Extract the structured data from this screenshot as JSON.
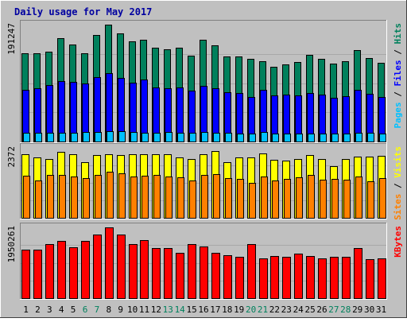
{
  "chart_data": {
    "type": "bar",
    "title": "Daily usage for May 2017",
    "colors": {
      "background": "#C0C0C0",
      "frame_light": "#FFFFFF",
      "frame_dark": "#808080",
      "title": "#0000A0",
      "hits": "#00805C",
      "files": "#0000FF",
      "pages": "#00C0FF",
      "visits": "#FFFF00",
      "sites": "#FF8000",
      "kbytes": "#FF0000",
      "weekend_label": "#00805C",
      "weekday_label": "#000000"
    },
    "categories": [
      "1",
      "2",
      "3",
      "4",
      "5",
      "6",
      "7",
      "8",
      "9",
      "10",
      "11",
      "12",
      "13",
      "14",
      "15",
      "16",
      "17",
      "18",
      "19",
      "20",
      "21",
      "22",
      "23",
      "24",
      "25",
      "26",
      "27",
      "28",
      "29",
      "30",
      "31"
    ],
    "weekend_days": [
      "6",
      "7",
      "13",
      "14",
      "20",
      "21",
      "27",
      "28"
    ],
    "panels": [
      {
        "name": "hits_files_pages",
        "ymax_label": "191247",
        "ymax": 191247,
        "legend": [
          "Pages",
          "/",
          "Files",
          "/",
          "Hits"
        ],
        "series": [
          {
            "name": "Hits",
            "values": [
              145000,
              145000,
              147000,
              169000,
              159000,
              145000,
              174000,
              191247,
              177000,
              164000,
              166000,
              153000,
              151000,
              153000,
              141000,
              166000,
              157000,
              139000,
              139000,
              135000,
              132000,
              122000,
              126000,
              130000,
              142000,
              135000,
              128000,
              131000,
              150000,
              136000,
              129000
            ]
          },
          {
            "name": "Files",
            "values": [
              85000,
              87000,
              93000,
              99000,
              98000,
              95000,
              105000,
              112000,
              104000,
              96000,
              102000,
              89000,
              87000,
              88000,
              83000,
              91000,
              87000,
              81000,
              79000,
              73000,
              85000,
              75000,
              77000,
              76000,
              80000,
              77000,
              72000,
              74000,
              84000,
              78000,
              73000
            ]
          },
          {
            "name": "Pages",
            "values": [
              14000,
              14000,
              14000,
              14000,
              14000,
              15000,
              15000,
              17000,
              17000,
              15000,
              14000,
              14000,
              15000,
              14000,
              14000,
              15000,
              14000,
              14000,
              13000,
              13000,
              15000,
              13000,
              13000,
              13000,
              13000,
              13000,
              13000,
              13000,
              14000,
              14000,
              13000
            ]
          }
        ]
      },
      {
        "name": "visits_sites",
        "ymax_label": "2372",
        "ymax": 2372,
        "legend": [
          "Sites",
          "/",
          "Visits"
        ],
        "series": [
          {
            "name": "Visits",
            "values": [
              2150,
              2050,
              2000,
              2250,
              2160,
              1900,
              2120,
              2160,
              2130,
              2150,
              2150,
              2160,
              2150,
              2040,
              1990,
              2160,
              2260,
              1900,
              2050,
              2050,
              2190,
              1970,
              1950,
              2000,
              2120,
              2000,
              1750,
              2000,
              2080,
              2080,
              2090
            ]
          },
          {
            "name": "Sites",
            "values": [
              1420,
              1270,
              1460,
              1450,
              1410,
              1340,
              1460,
              1550,
              1510,
              1390,
              1420,
              1460,
              1390,
              1380,
              1280,
              1460,
              1470,
              1350,
              1310,
              1180,
              1410,
              1270,
              1330,
              1370,
              1450,
              1290,
              1320,
              1300,
              1400,
              1250,
              1350
            ]
          }
        ]
      },
      {
        "name": "kbytes",
        "ymax_label": "1950261",
        "ymax": 1950261,
        "legend": [
          "KBytes"
        ],
        "series": [
          {
            "name": "KBytes",
            "values": [
              1340000,
              1340000,
              1480000,
              1580000,
              1400000,
              1580000,
              1750000,
              1950261,
              1750000,
              1500000,
              1600000,
              1380000,
              1380000,
              1240000,
              1480000,
              1420000,
              1260000,
              1180000,
              1130000,
              1480000,
              1100000,
              1160000,
              1150000,
              1230000,
              1170000,
              1090000,
              1150000,
              1140000,
              1370000,
              1070000,
              1100000
            ]
          }
        ]
      }
    ]
  }
}
